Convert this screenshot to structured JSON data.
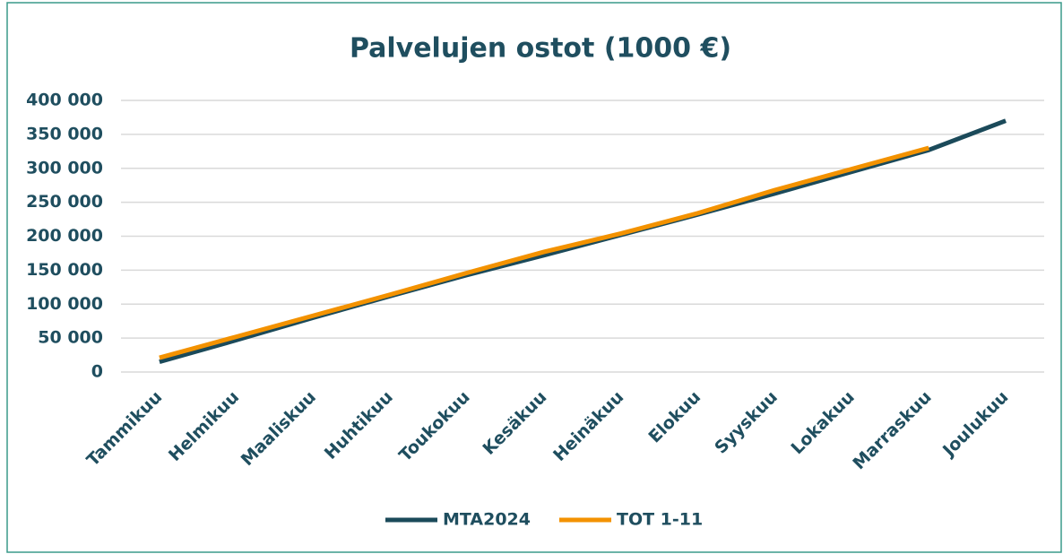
{
  "chart_data": {
    "type": "line",
    "title": "Palvelujen ostot (1000 €)",
    "categories": [
      "Tammikuu",
      "Helmikuu",
      "Maaliskuu",
      "Huhtikuu",
      "Toukokuu",
      "Kesäkuu",
      "Heinäkuu",
      "Elokuu",
      "Syyskuu",
      "Lokakuu",
      "Marraskuu",
      "Joulukuu"
    ],
    "series": [
      {
        "name": "MTA2024",
        "color": "#1b4a5a",
        "values": [
          15000,
          47000,
          80000,
          112000,
          143000,
          172000,
          202000,
          232000,
          263000,
          295000,
          327000,
          370000
        ]
      },
      {
        "name": "TOT 1-11",
        "color": "#f39200",
        "values": [
          21000,
          52000,
          83000,
          114000,
          146000,
          177000,
          204000,
          234000,
          268000,
          299000,
          330000,
          null
        ]
      }
    ],
    "ylim": [
      0,
      400000
    ],
    "yticks": [
      0,
      {
        "value": 50000,
        "label": "50 000"
      },
      {
        "value": 100000,
        "label": "100 000"
      },
      {
        "value": 150000,
        "label": "150 000"
      },
      {
        "value": 200000,
        "label": "200 000"
      },
      {
        "value": 250000,
        "label": "250 000"
      },
      {
        "value": 300000,
        "label": "300 000"
      },
      {
        "value": 350000,
        "label": "350 000"
      },
      {
        "value": 400000,
        "label": "400 000"
      }
    ],
    "grid": true,
    "legend": "bottom"
  }
}
